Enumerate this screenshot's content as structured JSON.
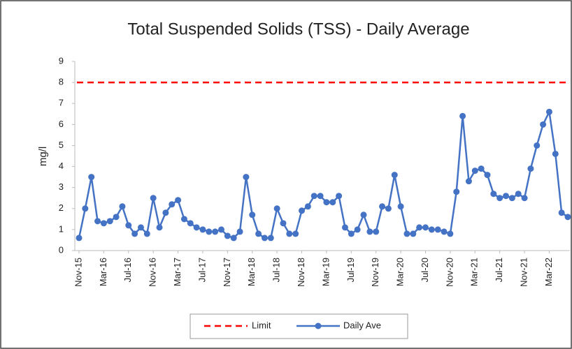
{
  "chart_data": {
    "type": "line",
    "title": "Total Suspended Solids (TSS)  - Daily Average",
    "y_label": "mg/l",
    "categories": [
      "Nov-15",
      null,
      null,
      null,
      "Mar-16",
      null,
      null,
      null,
      "Jul-16",
      null,
      null,
      null,
      "Nov-16",
      null,
      null,
      null,
      "Mar-17",
      null,
      null,
      null,
      "Jul-17",
      null,
      null,
      null,
      "Nov-17",
      null,
      null,
      null,
      "Mar-18",
      null,
      null,
      null,
      "Jul-18",
      null,
      null,
      null,
      "Nov-18",
      null,
      null,
      null,
      "Mar-19",
      null,
      null,
      null,
      "Jul-19",
      null,
      null,
      null,
      "Nov-19",
      null,
      null,
      null,
      "Mar-20",
      null,
      null,
      null,
      "Jul-20",
      null,
      null,
      null,
      "Nov-20",
      null,
      null,
      null,
      "Mar-21",
      null,
      null,
      null,
      "Jul-21",
      null,
      null,
      null,
      "Nov-21",
      null,
      null,
      null,
      "Mar-22",
      null,
      null,
      null
    ],
    "limit": {
      "name": "Limit",
      "value": 8,
      "color": "#ff0000"
    },
    "series": [
      {
        "name": "Daily Ave",
        "color": "#4472c4",
        "values": [
          0.6,
          2.0,
          3.5,
          1.4,
          1.3,
          1.4,
          1.6,
          2.1,
          1.2,
          0.8,
          1.1,
          0.8,
          2.5,
          1.1,
          1.8,
          2.2,
          2.4,
          1.5,
          1.3,
          1.1,
          1.0,
          0.9,
          0.9,
          1.0,
          0.7,
          0.6,
          0.9,
          3.5,
          1.7,
          0.8,
          0.6,
          0.6,
          2.0,
          1.3,
          0.8,
          0.8,
          1.9,
          2.1,
          2.6,
          2.6,
          2.3,
          2.3,
          2.6,
          1.1,
          0.8,
          1.0,
          1.7,
          0.9,
          0.9,
          2.1,
          2.0,
          3.6,
          2.1,
          0.8,
          0.8,
          1.1,
          1.1,
          1.0,
          1.0,
          0.9,
          0.8,
          2.8,
          6.4,
          3.3,
          3.8,
          3.9,
          3.6,
          2.7,
          2.5,
          2.6,
          2.5,
          2.7,
          2.5,
          3.9,
          5.0,
          6.0,
          6.6,
          4.6,
          1.8,
          1.6
        ]
      }
    ],
    "ylim": [
      0,
      9
    ],
    "yticks": [
      0,
      1,
      2,
      3,
      4,
      5,
      6,
      7,
      8,
      9
    ],
    "legend": "bottom"
  }
}
